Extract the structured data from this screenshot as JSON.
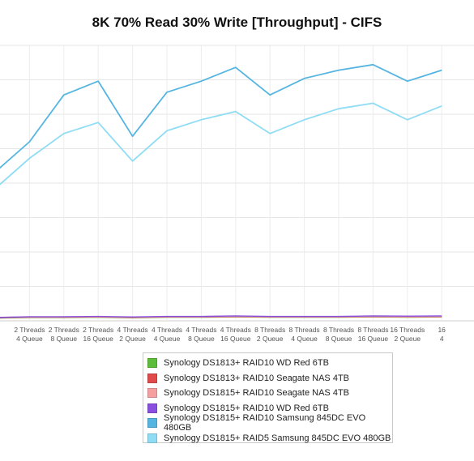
{
  "chart_data": {
    "type": "line",
    "title": "8K 70% Read 30% Write [Throughput] - CIFS",
    "xlabel": "",
    "ylabel": "",
    "grid": true,
    "legend_position": "bottom",
    "ylim": [
      0,
      100
    ],
    "categories": [
      [
        "",
        ""
      ],
      [
        "2 Threads",
        "4 Queue"
      ],
      [
        "2 Threads",
        "8 Queue"
      ],
      [
        "2 Threads",
        "16 Queue"
      ],
      [
        "4 Threads",
        "2 Queue"
      ],
      [
        "4 Threads",
        "4 Queue"
      ],
      [
        "4 Threads",
        "8 Queue"
      ],
      [
        "4 Threads",
        "16 Queue"
      ],
      [
        "8 Threads",
        "2 Queue"
      ],
      [
        "8 Threads",
        "4 Queue"
      ],
      [
        "8 Threads",
        "8 Queue"
      ],
      [
        "8 Threads",
        "16 Queue"
      ],
      [
        "16 Threads",
        "2 Queue"
      ],
      [
        "16",
        "4"
      ]
    ],
    "series": [
      {
        "name": "Synology DS1813+ RAID10 WD Red 6TB",
        "color": "#5cbd3a",
        "values": [
          1.0,
          1.2,
          1.2,
          1.3,
          1.1,
          1.3,
          1.3,
          1.4,
          1.3,
          1.3,
          1.3,
          1.4,
          1.3,
          1.4
        ]
      },
      {
        "name": "Synology DS1813+ RAID10 Seagate NAS 4TB",
        "color": "#e04a4a",
        "values": [
          1.1,
          1.3,
          1.3,
          1.4,
          1.2,
          1.4,
          1.4,
          1.5,
          1.4,
          1.4,
          1.4,
          1.5,
          1.4,
          1.5
        ]
      },
      {
        "name": "Synology DS1815+ RAID10 Seagate NAS 4TB",
        "color": "#f4a0a0",
        "values": [
          1.2,
          1.4,
          1.4,
          1.5,
          1.3,
          1.5,
          1.5,
          1.6,
          1.5,
          1.5,
          1.5,
          1.6,
          1.5,
          1.6
        ]
      },
      {
        "name": "Synology DS1815+ RAID10 WD Red 6TB",
        "color": "#8b4fe0",
        "values": [
          1.2,
          1.5,
          1.5,
          1.6,
          1.4,
          1.6,
          1.6,
          1.8,
          1.6,
          1.6,
          1.6,
          1.8,
          1.7,
          1.8
        ]
      },
      {
        "name": "Synology DS1815+ RAID10 Samsung 845DC EVO 480GB",
        "color": "#55b5e0",
        "values": [
          54,
          65,
          82,
          87,
          67,
          83,
          87,
          92,
          82,
          88,
          91,
          93,
          87,
          91
        ]
      },
      {
        "name": "Synology DS1815+ RAID5 Samsung 845DC EVO 480GB",
        "color": "#8fdcf5",
        "values": [
          48,
          59,
          68,
          72,
          58,
          69,
          73,
          76,
          68,
          73,
          77,
          79,
          73,
          78
        ]
      }
    ]
  }
}
